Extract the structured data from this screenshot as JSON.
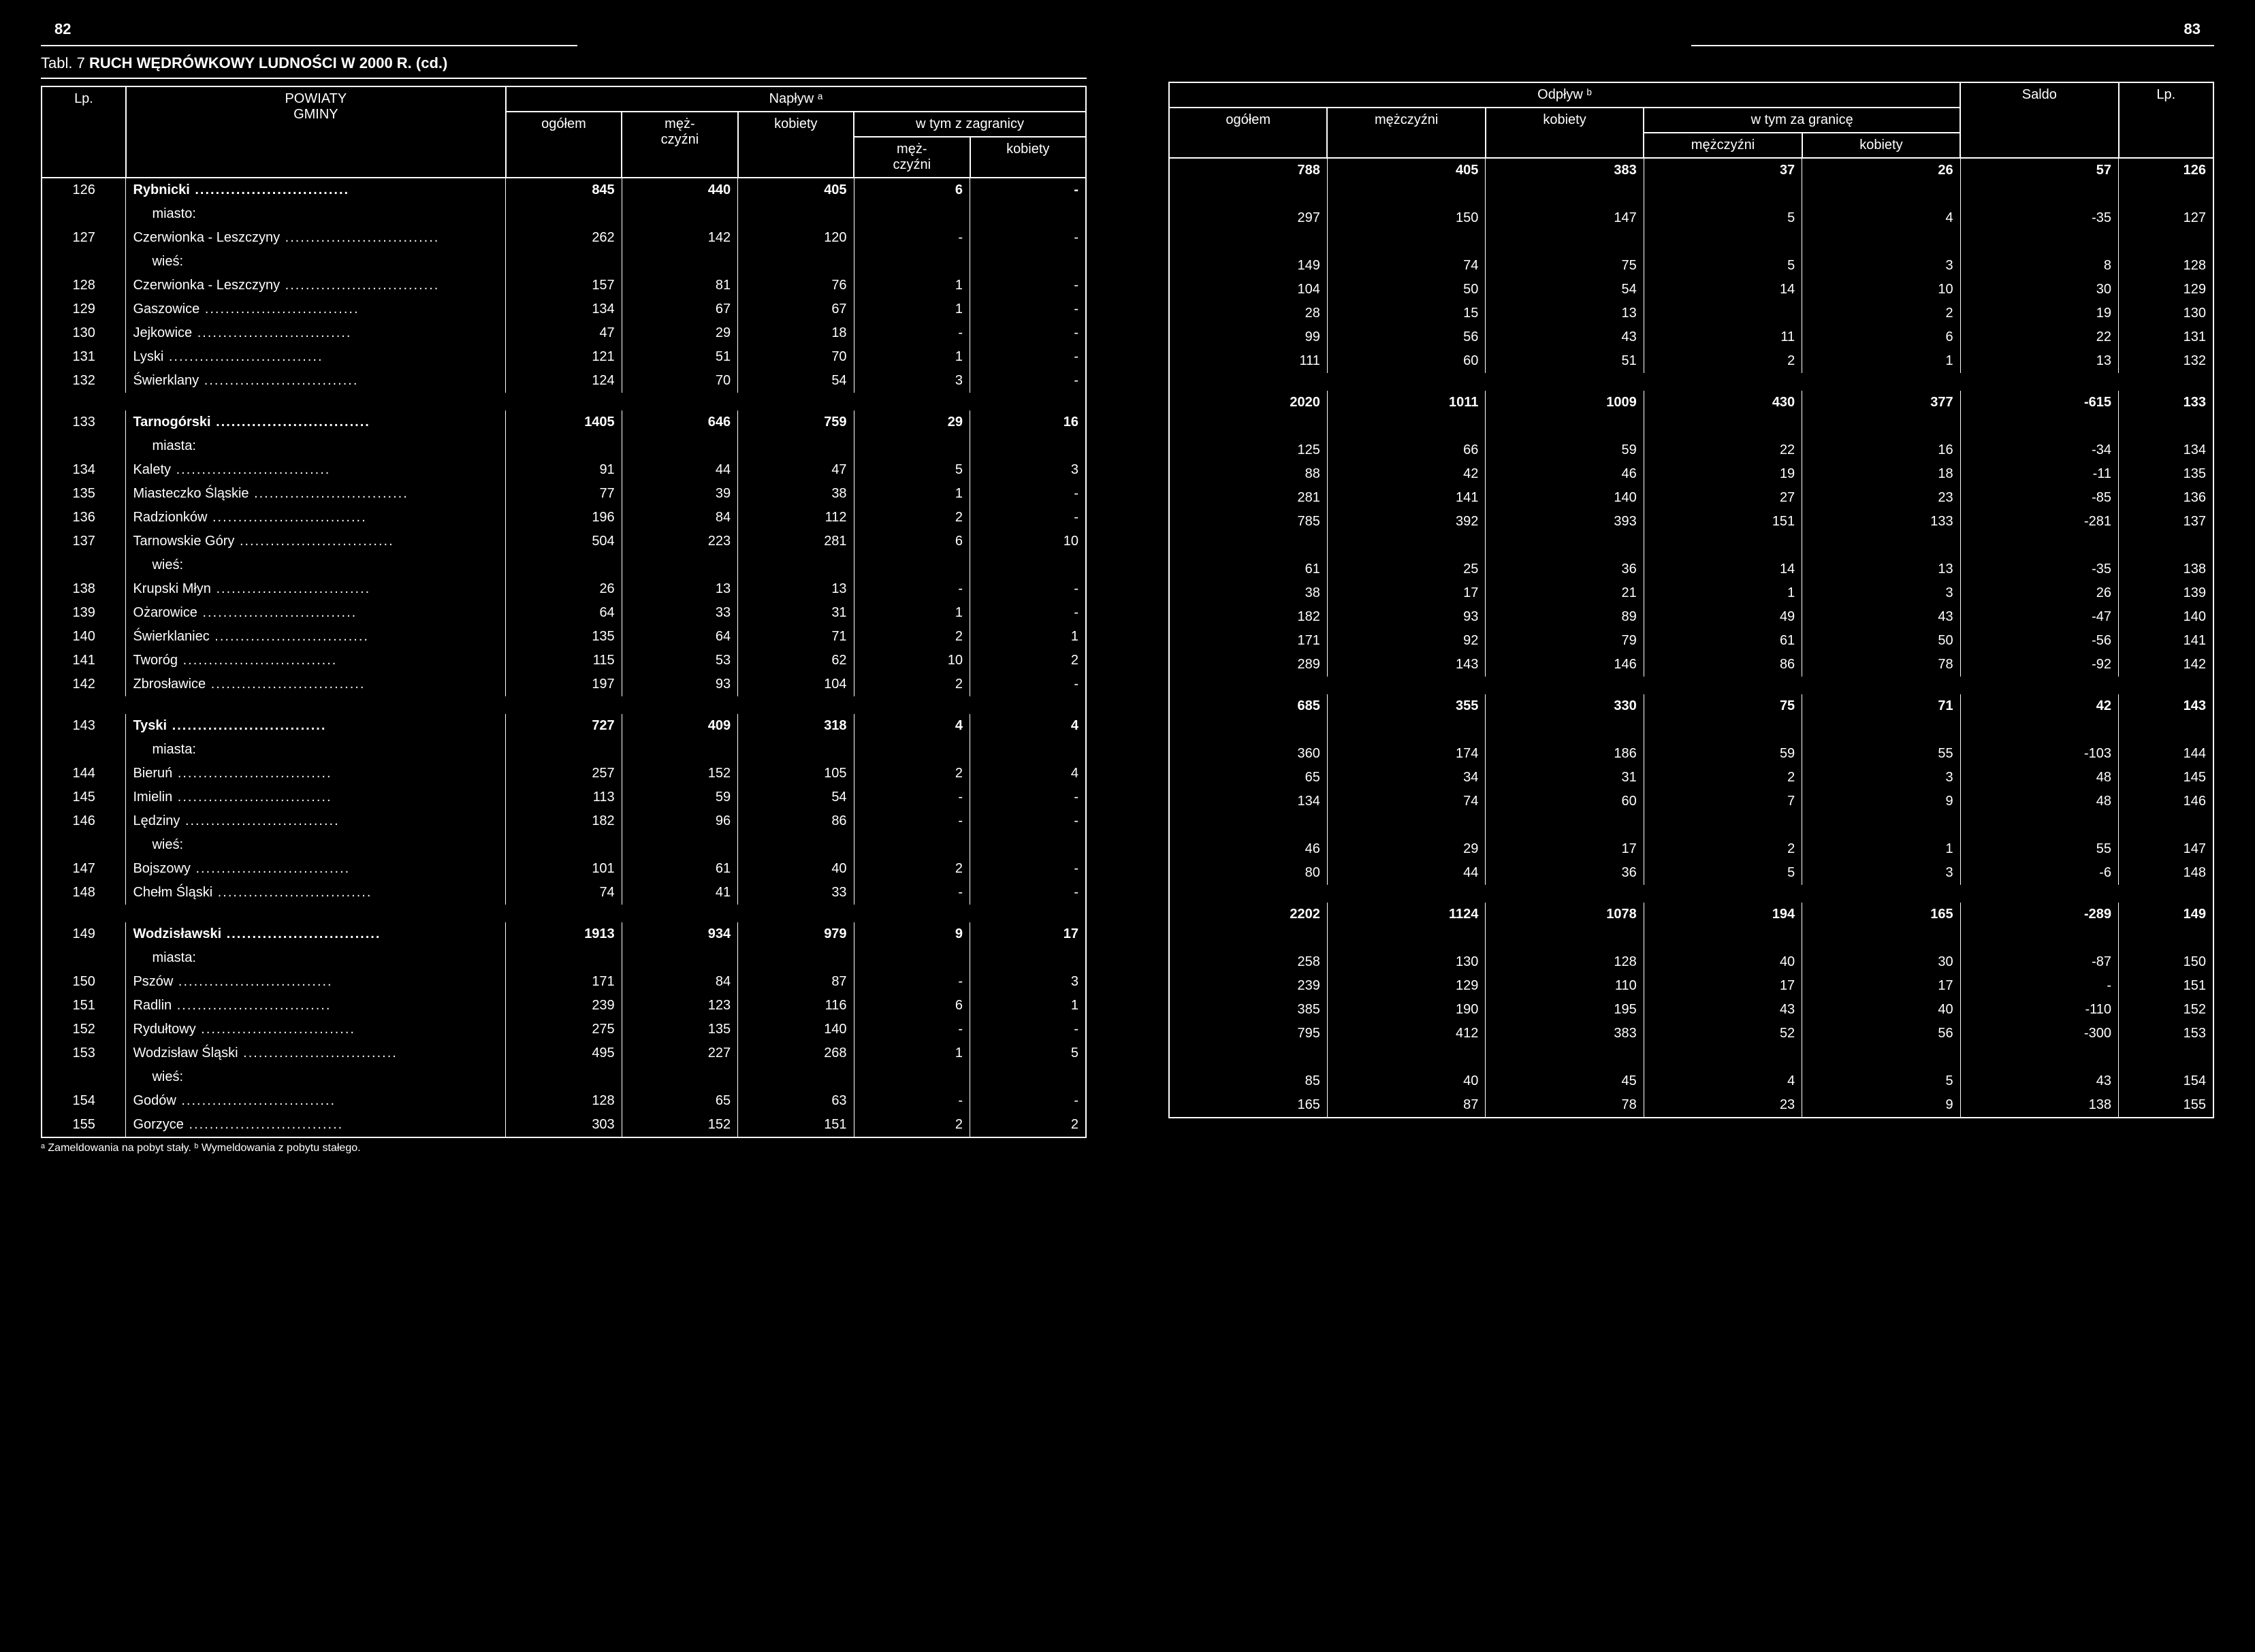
{
  "page_left_num": "82",
  "page_right_num": "83",
  "title_prefix": "Tabl. 7",
  "title_main": "RUCH WĘDRÓWKOWY LUDNOŚCI W 2000 R. (cd.)",
  "left_headers": {
    "lp": "Lp.",
    "powiaty": "POWIATY",
    "gminy": "GMINY",
    "naplyw": "Napływ ᵃ",
    "ogolem": "ogółem",
    "mezczyzni": "męż-\nczyźni",
    "kobiety": "kobiety",
    "wtym": "w tym z zagranicy"
  },
  "right_headers": {
    "odplyw": "Odpływ ᵇ",
    "ogolem": "ogółem",
    "mezczyzni": "mężczyźni",
    "kobiety": "kobiety",
    "wtym": "w tym za granicę",
    "saldo": "Saldo",
    "lp": "Lp."
  },
  "footnote": "ᵃ Zameldowania na pobyt stały.   ᵇ Wymeldowania z pobytu stałego.",
  "groups": [
    {
      "rows": [
        {
          "lp": "126",
          "name": "Rybnicki",
          "bold": true,
          "dots": true,
          "l": [
            "845",
            "440",
            "405",
            "6",
            "-"
          ],
          "r": [
            "788",
            "405",
            "383",
            "37",
            "26",
            "57",
            "126"
          ]
        },
        {
          "name": "miasto:",
          "sub": true
        },
        {
          "lp": "127",
          "name": "Czerwionka - Leszczyny",
          "dots": true,
          "l": [
            "262",
            "142",
            "120",
            "-",
            "-"
          ],
          "r": [
            "297",
            "150",
            "147",
            "5",
            "4",
            "-35",
            "127"
          ]
        },
        {
          "name": "wieś:",
          "sub": true
        },
        {
          "lp": "128",
          "name": "Czerwionka - Leszczyny",
          "dots": true,
          "l": [
            "157",
            "81",
            "76",
            "1",
            "-"
          ],
          "r": [
            "149",
            "74",
            "75",
            "5",
            "3",
            "8",
            "128"
          ]
        },
        {
          "lp": "129",
          "name": "Gaszowice",
          "dots": true,
          "l": [
            "134",
            "67",
            "67",
            "1",
            "-"
          ],
          "r": [
            "104",
            "50",
            "54",
            "14",
            "10",
            "30",
            "129"
          ]
        },
        {
          "lp": "130",
          "name": "Jejkowice",
          "dots": true,
          "l": [
            "47",
            "29",
            "18",
            "-",
            "-"
          ],
          "r": [
            "28",
            "15",
            "13",
            "",
            "2",
            "19",
            "130"
          ]
        },
        {
          "lp": "131",
          "name": "Lyski",
          "dots": true,
          "l": [
            "121",
            "51",
            "70",
            "1",
            "-"
          ],
          "r": [
            "99",
            "56",
            "43",
            "11",
            "6",
            "22",
            "131"
          ]
        },
        {
          "lp": "132",
          "name": "Świerklany",
          "dots": true,
          "l": [
            "124",
            "70",
            "54",
            "3",
            "-"
          ],
          "r": [
            "111",
            "60",
            "51",
            "2",
            "1",
            "13",
            "132"
          ]
        }
      ]
    },
    {
      "rows": [
        {
          "lp": "133",
          "name": "Tarnogórski",
          "bold": true,
          "dots": true,
          "l": [
            "1405",
            "646",
            "759",
            "29",
            "16"
          ],
          "r": [
            "2020",
            "1011",
            "1009",
            "430",
            "377",
            "-615",
            "133"
          ]
        },
        {
          "name": "miasta:",
          "sub": true
        },
        {
          "lp": "134",
          "name": "Kalety",
          "dots": true,
          "l": [
            "91",
            "44",
            "47",
            "5",
            "3"
          ],
          "r": [
            "125",
            "66",
            "59",
            "22",
            "16",
            "-34",
            "134"
          ]
        },
        {
          "lp": "135",
          "name": "Miasteczko Śląskie",
          "dots": true,
          "l": [
            "77",
            "39",
            "38",
            "1",
            "-"
          ],
          "r": [
            "88",
            "42",
            "46",
            "19",
            "18",
            "-11",
            "135"
          ]
        },
        {
          "lp": "136",
          "name": "Radzionków",
          "dots": true,
          "l": [
            "196",
            "84",
            "112",
            "2",
            "-"
          ],
          "r": [
            "281",
            "141",
            "140",
            "27",
            "23",
            "-85",
            "136"
          ]
        },
        {
          "lp": "137",
          "name": "Tarnowskie Góry",
          "dots": true,
          "l": [
            "504",
            "223",
            "281",
            "6",
            "10"
          ],
          "r": [
            "785",
            "392",
            "393",
            "151",
            "133",
            "-281",
            "137"
          ]
        },
        {
          "name": "wieś:",
          "sub": true
        },
        {
          "lp": "138",
          "name": "Krupski Młyn",
          "dots": true,
          "l": [
            "26",
            "13",
            "13",
            "-",
            "-"
          ],
          "r": [
            "61",
            "25",
            "36",
            "14",
            "13",
            "-35",
            "138"
          ]
        },
        {
          "lp": "139",
          "name": "Ożarowice",
          "dots": true,
          "l": [
            "64",
            "33",
            "31",
            "1",
            "-"
          ],
          "r": [
            "38",
            "17",
            "21",
            "1",
            "3",
            "26",
            "139"
          ]
        },
        {
          "lp": "140",
          "name": "Świerklaniec",
          "dots": true,
          "l": [
            "135",
            "64",
            "71",
            "2",
            "1"
          ],
          "r": [
            "182",
            "93",
            "89",
            "49",
            "43",
            "-47",
            "140"
          ]
        },
        {
          "lp": "141",
          "name": "Tworóg",
          "dots": true,
          "l": [
            "115",
            "53",
            "62",
            "10",
            "2"
          ],
          "r": [
            "171",
            "92",
            "79",
            "61",
            "50",
            "-56",
            "141"
          ]
        },
        {
          "lp": "142",
          "name": "Zbrosławice",
          "dots": true,
          "l": [
            "197",
            "93",
            "104",
            "2",
            "-"
          ],
          "r": [
            "289",
            "143",
            "146",
            "86",
            "78",
            "-92",
            "142"
          ]
        }
      ]
    },
    {
      "rows": [
        {
          "lp": "143",
          "name": "Tyski",
          "bold": true,
          "dots": true,
          "l": [
            "727",
            "409",
            "318",
            "4",
            "4"
          ],
          "r": [
            "685",
            "355",
            "330",
            "75",
            "71",
            "42",
            "143"
          ]
        },
        {
          "name": "miasta:",
          "sub": true
        },
        {
          "lp": "144",
          "name": "Bieruń",
          "dots": true,
          "l": [
            "257",
            "152",
            "105",
            "2",
            "4"
          ],
          "r": [
            "360",
            "174",
            "186",
            "59",
            "55",
            "-103",
            "144"
          ]
        },
        {
          "lp": "145",
          "name": "Imielin",
          "dots": true,
          "l": [
            "113",
            "59",
            "54",
            "-",
            "-"
          ],
          "r": [
            "65",
            "34",
            "31",
            "2",
            "3",
            "48",
            "145"
          ]
        },
        {
          "lp": "146",
          "name": "Lędziny",
          "dots": true,
          "l": [
            "182",
            "96",
            "86",
            "-",
            "-"
          ],
          "r": [
            "134",
            "74",
            "60",
            "7",
            "9",
            "48",
            "146"
          ]
        },
        {
          "name": "wieś:",
          "sub": true
        },
        {
          "lp": "147",
          "name": "Bojszowy",
          "dots": true,
          "l": [
            "101",
            "61",
            "40",
            "2",
            "-"
          ],
          "r": [
            "46",
            "29",
            "17",
            "2",
            "1",
            "55",
            "147"
          ]
        },
        {
          "lp": "148",
          "name": "Chełm Śląski",
          "dots": true,
          "l": [
            "74",
            "41",
            "33",
            "-",
            "-"
          ],
          "r": [
            "80",
            "44",
            "36",
            "5",
            "3",
            "-6",
            "148"
          ]
        }
      ]
    },
    {
      "rows": [
        {
          "lp": "149",
          "name": "Wodzisławski",
          "bold": true,
          "dots": true,
          "l": [
            "1913",
            "934",
            "979",
            "9",
            "17"
          ],
          "r": [
            "2202",
            "1124",
            "1078",
            "194",
            "165",
            "-289",
            "149"
          ]
        },
        {
          "name": "miasta:",
          "sub": true
        },
        {
          "lp": "150",
          "name": "Pszów",
          "dots": true,
          "l": [
            "171",
            "84",
            "87",
            "-",
            "3"
          ],
          "r": [
            "258",
            "130",
            "128",
            "40",
            "30",
            "-87",
            "150"
          ]
        },
        {
          "lp": "151",
          "name": "Radlin",
          "dots": true,
          "l": [
            "239",
            "123",
            "116",
            "6",
            "1"
          ],
          "r": [
            "239",
            "129",
            "110",
            "17",
            "17",
            "-",
            "151"
          ]
        },
        {
          "lp": "152",
          "name": "Rydułtowy",
          "dots": true,
          "l": [
            "275",
            "135",
            "140",
            "-",
            "-"
          ],
          "r": [
            "385",
            "190",
            "195",
            "43",
            "40",
            "-110",
            "152"
          ]
        },
        {
          "lp": "153",
          "name": "Wodzisław Śląski",
          "dots": true,
          "l": [
            "495",
            "227",
            "268",
            "1",
            "5"
          ],
          "r": [
            "795",
            "412",
            "383",
            "52",
            "56",
            "-300",
            "153"
          ]
        },
        {
          "name": "wieś:",
          "sub": true
        },
        {
          "lp": "154",
          "name": "Godów",
          "dots": true,
          "l": [
            "128",
            "65",
            "63",
            "-",
            "-"
          ],
          "r": [
            "85",
            "40",
            "45",
            "4",
            "5",
            "43",
            "154"
          ]
        },
        {
          "lp": "155",
          "name": "Gorzyce",
          "dots": true,
          "l": [
            "303",
            "152",
            "151",
            "2",
            "2"
          ],
          "r": [
            "165",
            "87",
            "78",
            "23",
            "9",
            "138",
            "155"
          ]
        }
      ]
    }
  ]
}
